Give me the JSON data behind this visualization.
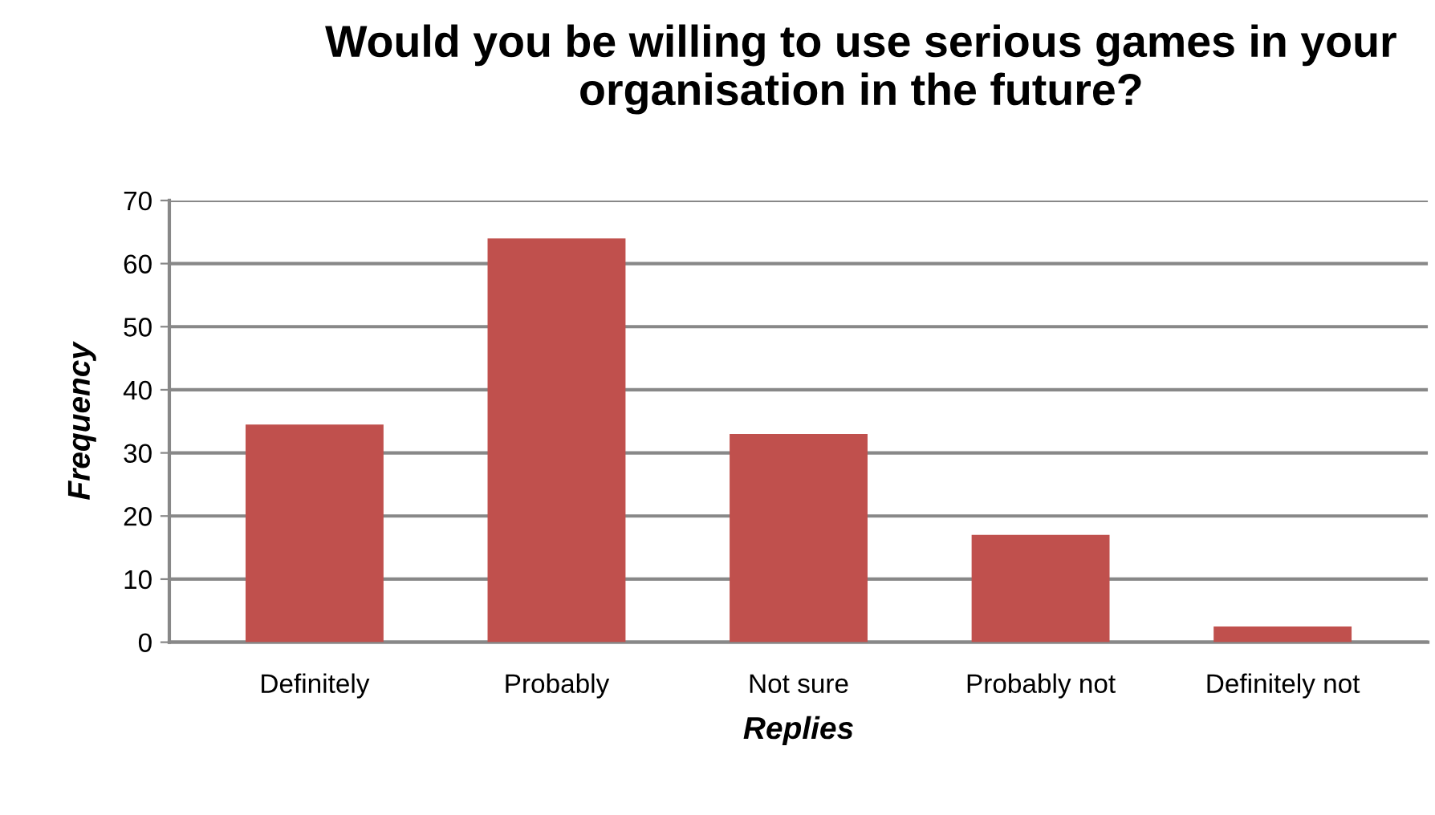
{
  "chart_data": {
    "type": "bar",
    "title": "Would you be willing to use serious games in your organisation in the future?",
    "xlabel": "Replies",
    "ylabel": "Frequency",
    "categories": [
      "Definitely",
      "Probably",
      "Not sure",
      "Probably not",
      "Definitely not"
    ],
    "values": [
      34.5,
      64,
      33,
      17,
      2.5
    ],
    "color": "#c0504d",
    "ylim": [
      0,
      70
    ],
    "yticks": [
      0,
      10,
      20,
      30,
      40,
      50,
      60,
      70
    ],
    "grid": "y",
    "legend": false
  }
}
